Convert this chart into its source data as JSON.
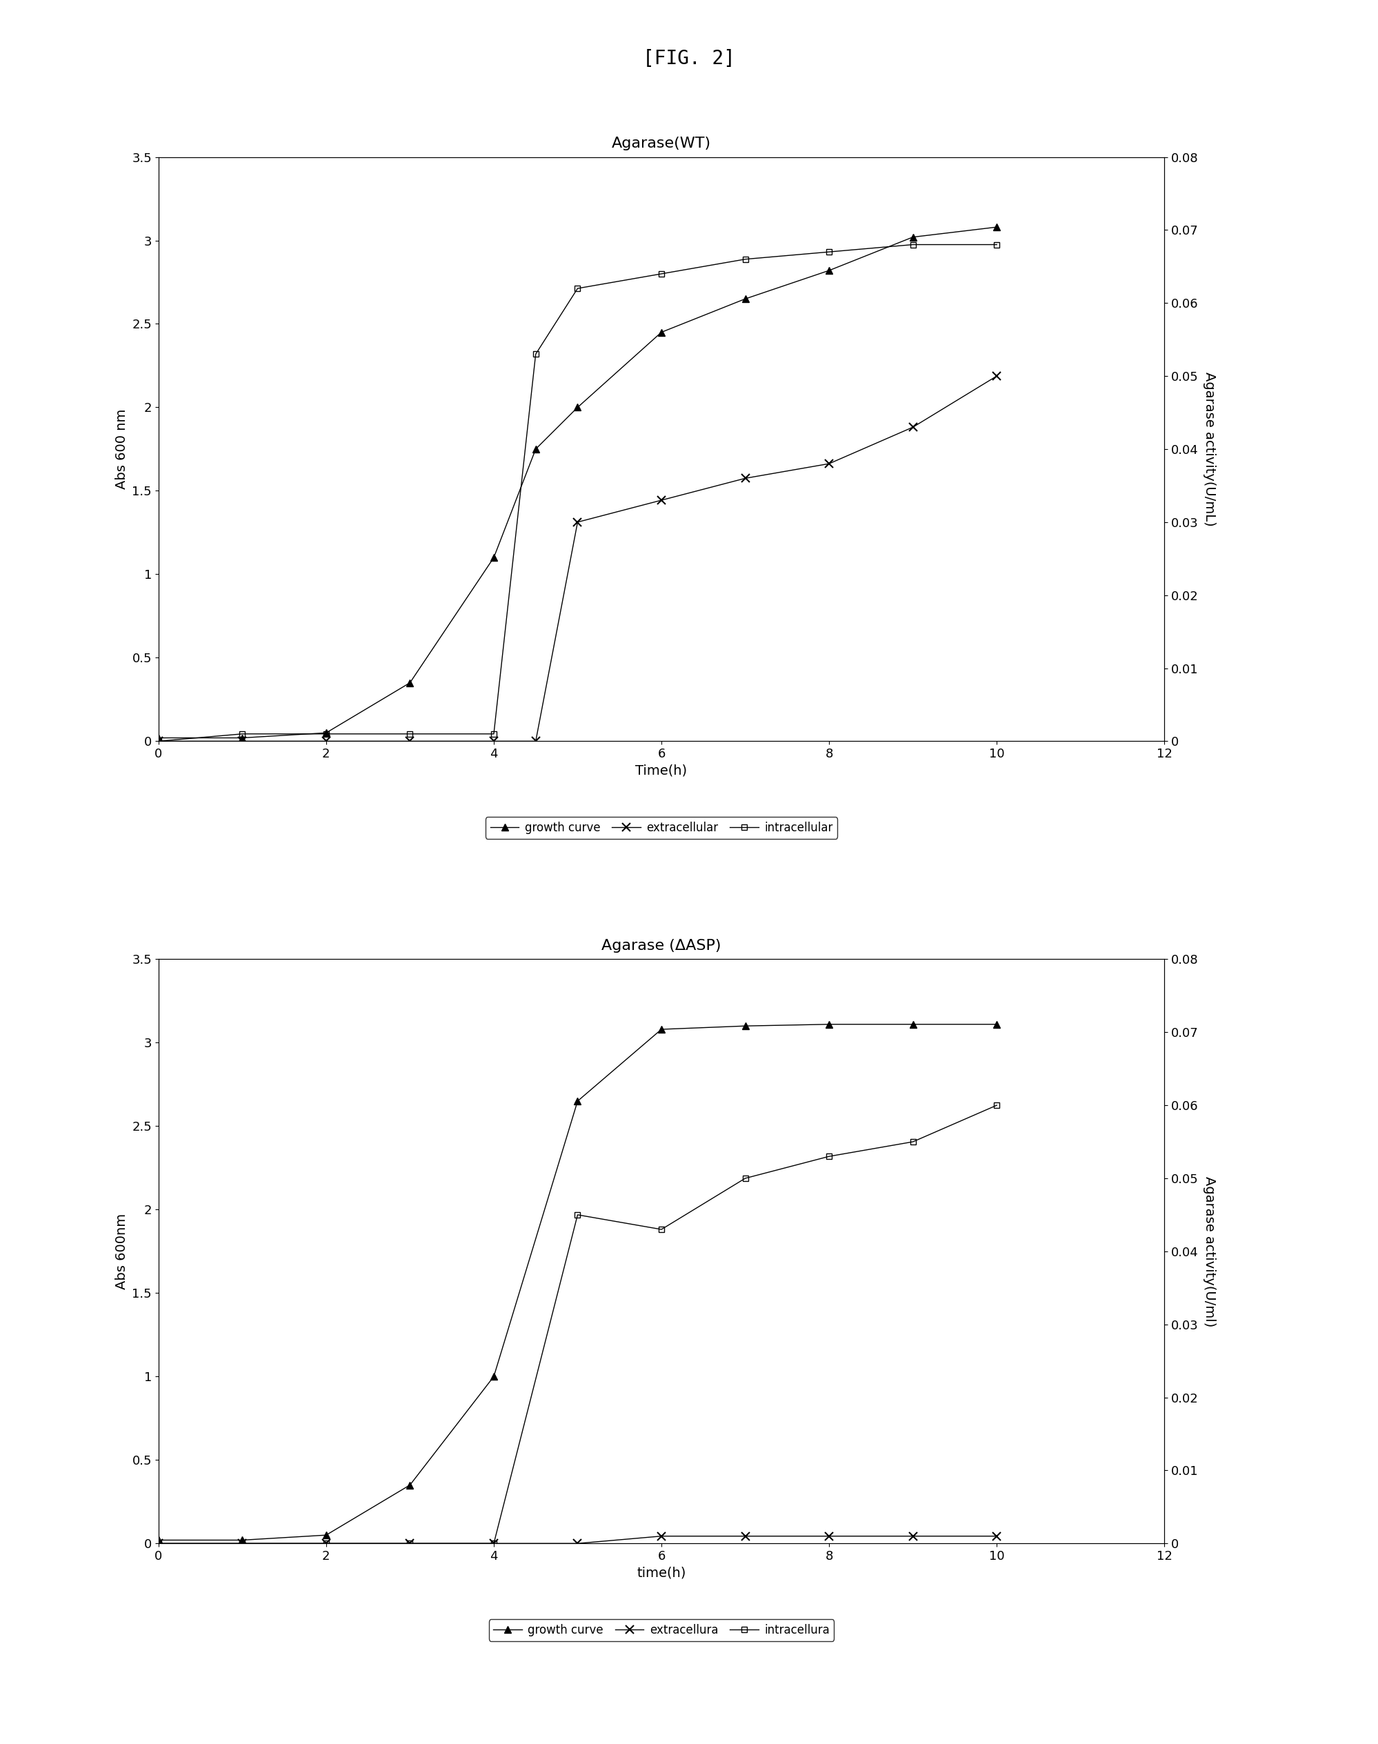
{
  "fig_label": "[FIG. 2]",
  "plot1": {
    "title": "Agarase(WT)",
    "xlabel": "Time(h)",
    "ylabel_left": "Abs 600 nm",
    "ylabel_right": "Agarase activity(U/mL)",
    "xlim": [
      0,
      12
    ],
    "ylim_left": [
      0,
      3.5
    ],
    "ylim_right": [
      0,
      0.08
    ],
    "xticks": [
      0,
      2,
      4,
      6,
      8,
      10,
      12
    ],
    "yticks_left": [
      0.0,
      0.5,
      1.0,
      1.5,
      2.0,
      2.5,
      3.0,
      3.5
    ],
    "yticks_right": [
      0,
      0.01,
      0.02,
      0.03,
      0.04,
      0.05,
      0.06,
      0.07,
      0.08
    ],
    "growth_curve": {
      "x": [
        0,
        1,
        2,
        3,
        4,
        4.5,
        5,
        6,
        7,
        8,
        9,
        10
      ],
      "y": [
        0.02,
        0.02,
        0.05,
        0.35,
        1.1,
        1.75,
        2.0,
        2.45,
        2.65,
        2.82,
        3.02,
        3.08
      ],
      "label": "growth curve",
      "axis": "left"
    },
    "extracellular": {
      "x": [
        0,
        1,
        2,
        3,
        4,
        4.5,
        5,
        6,
        7,
        8,
        9,
        10
      ],
      "y": [
        0.0,
        0.0,
        0.0,
        0.0,
        0.0,
        0.0,
        0.03,
        0.033,
        0.036,
        0.038,
        0.043,
        0.05
      ],
      "label": "extracellular",
      "axis": "right"
    },
    "intracellular": {
      "x": [
        0,
        1,
        2,
        3,
        4,
        4.5,
        5,
        6,
        7,
        8,
        9,
        10
      ],
      "y": [
        0.0,
        0.001,
        0.001,
        0.001,
        0.001,
        0.053,
        0.062,
        0.064,
        0.066,
        0.067,
        0.068,
        0.068
      ],
      "label": "intracellular",
      "axis": "right"
    }
  },
  "plot2": {
    "title": "Agarase (ΔASP)",
    "xlabel": "time(h)",
    "ylabel_left": "Abs 600nm",
    "ylabel_right": "Agarase activity(U/ml)",
    "xlim": [
      0,
      12
    ],
    "ylim_left": [
      0,
      3.5
    ],
    "ylim_right": [
      0,
      0.08
    ],
    "xticks": [
      0,
      2,
      4,
      6,
      8,
      10,
      12
    ],
    "yticks_left": [
      0.0,
      0.5,
      1.0,
      1.5,
      2.0,
      2.5,
      3.0,
      3.5
    ],
    "yticks_right": [
      0,
      0.01,
      0.02,
      0.03,
      0.04,
      0.05,
      0.06,
      0.07,
      0.08
    ],
    "growth_curve": {
      "x": [
        0,
        1,
        2,
        3,
        4,
        5,
        6,
        7,
        8,
        9,
        10
      ],
      "y": [
        0.02,
        0.02,
        0.05,
        0.35,
        1.0,
        2.65,
        3.08,
        3.1,
        3.11,
        3.11,
        3.11
      ],
      "label": "growth curve",
      "axis": "left"
    },
    "extracellular": {
      "x": [
        0,
        1,
        2,
        3,
        4,
        5,
        6,
        7,
        8,
        9,
        10
      ],
      "y": [
        0.0,
        0.0,
        0.0,
        0.0,
        0.0,
        0.0,
        0.001,
        0.001,
        0.001,
        0.001,
        0.001
      ],
      "label": "extracellura",
      "axis": "right"
    },
    "intracellular": {
      "x": [
        0,
        1,
        2,
        3,
        4,
        5,
        6,
        7,
        8,
        9,
        10
      ],
      "y": [
        0.0,
        0.0,
        0.0,
        0.0,
        0.0,
        0.045,
        0.043,
        0.05,
        0.053,
        0.055,
        0.06
      ],
      "label": "intracellura",
      "axis": "right"
    }
  },
  "background_color": "#ffffff",
  "line_color": "#000000",
  "fig_label_fontsize": 20,
  "title_fontsize": 16,
  "label_fontsize": 14,
  "tick_fontsize": 13,
  "legend_fontsize": 12
}
